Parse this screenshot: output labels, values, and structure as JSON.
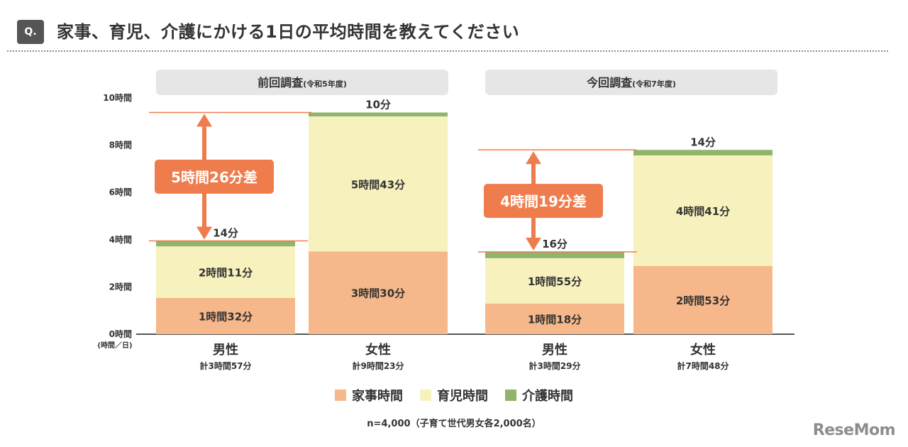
{
  "header": {
    "badge": "Q.",
    "title": "家事、育児、介護にかける1日の平均時間を教えてください"
  },
  "chart_data": {
    "type": "bar",
    "stacked": true,
    "y_unit": "時間",
    "ylim": [
      0,
      10
    ],
    "y_ticks": [
      "0時間",
      "2時間",
      "4時間",
      "6時間",
      "8時間",
      "10時間"
    ],
    "y_tick_values": [
      0,
      2,
      4,
      6,
      8,
      10
    ],
    "y_unit_label": "(時間／日)",
    "groups": [
      {
        "title": "前回調査",
        "subtitle": "(令和5年度)",
        "diff_label": "5時間26分差",
        "bars": [
          {
            "category": "男性",
            "total_label": "計3時間57分",
            "values_min": [
              92,
              131,
              14
            ],
            "labels": [
              "1時間32分",
              "2時間11分",
              "14分"
            ]
          },
          {
            "category": "女性",
            "total_label": "計9時間23分",
            "values_min": [
              210,
              343,
              10
            ],
            "labels": [
              "3時間30分",
              "5時間43分",
              "10分"
            ]
          }
        ]
      },
      {
        "title": "今回調査",
        "subtitle": "(令和7年度)",
        "diff_label": "4時間19分差",
        "bars": [
          {
            "category": "男性",
            "total_label": "計3時間29分",
            "values_min": [
              78,
              115,
              16
            ],
            "labels": [
              "1時間18分",
              "1時間55分",
              "16分"
            ]
          },
          {
            "category": "女性",
            "total_label": "計7時間48分",
            "values_min": [
              173,
              281,
              14
            ],
            "labels": [
              "2時間53分",
              "4時間41分",
              "14分"
            ]
          }
        ]
      }
    ],
    "series": [
      {
        "name": "家事時間",
        "color": "#f6b88a"
      },
      {
        "name": "育児時間",
        "color": "#f7f1bd"
      },
      {
        "name": "介護時間",
        "color": "#8fb46a"
      }
    ],
    "accent_color": "#ef7c4c"
  },
  "footnote": "n=4,000（子育て世代男女各2,000名）",
  "logo": "ReseMom"
}
